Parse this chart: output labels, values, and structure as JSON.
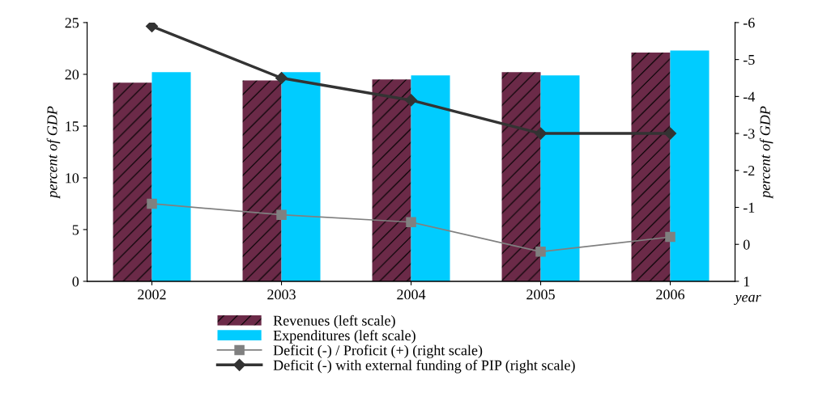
{
  "chart_data": {
    "type": "bar",
    "categories": [
      "2002",
      "2003",
      "2004",
      "2005",
      "2006"
    ],
    "xlabel": "year",
    "ylabel": "percent of GDP",
    "y2label": "percent of GDP",
    "ylim": [
      0,
      25
    ],
    "yticks": [
      0,
      5,
      10,
      15,
      20,
      25
    ],
    "y2lim": [
      1,
      -6
    ],
    "y2ticks": [
      1,
      0,
      -1,
      -2,
      -3,
      -4,
      -5,
      -6
    ],
    "grid": false,
    "legend": "bottom",
    "series": [
      {
        "name": "Revenues (left scale)",
        "color": "#6b2a48",
        "values": [
          19.2,
          19.4,
          19.5,
          20.2,
          22.1
        ]
      },
      {
        "name": "Expenditures (left scale)",
        "color": "#00ccff",
        "values": [
          20.2,
          20.2,
          19.9,
          19.9,
          22.3
        ]
      },
      {
        "name": "Deficit (-) / Proficit (+) (right scale)",
        "type": "line",
        "axis": "y2",
        "color": "#808080",
        "marker": "square",
        "values": [
          -1.1,
          -0.8,
          -0.6,
          0.2,
          -0.2
        ]
      },
      {
        "name": "Deficit (-) with external funding of PIP (right scale)",
        "type": "line",
        "axis": "y2",
        "color": "#333333",
        "marker": "diamond",
        "values": [
          -5.9,
          -4.5,
          -3.9,
          -3.0,
          -3.0
        ]
      }
    ]
  }
}
